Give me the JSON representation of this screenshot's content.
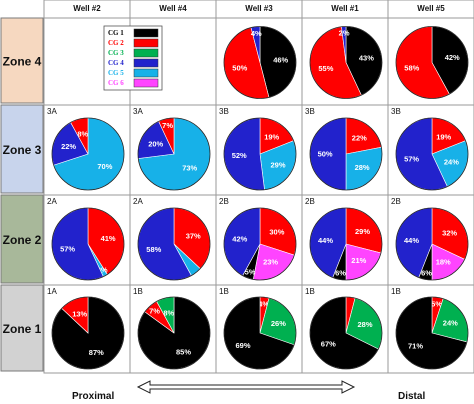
{
  "colors": {
    "CG1": "#000000",
    "CG2": "#ff0000",
    "CG3": "#00b050",
    "CG4": "#2222cc",
    "CG5": "#17b1e8",
    "CG6": "#ff44ff",
    "zone4_bg": "#f6d8c0",
    "zone3_bg": "#c8d4ec",
    "zone2_bg": "#a8b89a",
    "zone1_bg": "#d2d2d2"
  },
  "wells": [
    "Well #2",
    "Well #4",
    "Well #3",
    "Well #1",
    "Well #5"
  ],
  "zones": [
    "Zone 4",
    "Zone 3",
    "Zone 2",
    "Zone 1"
  ],
  "legend": {
    "entries": [
      {
        "key": "CG1",
        "label": "CG 1"
      },
      {
        "key": "CG2",
        "label": "CG 2"
      },
      {
        "key": "CG3",
        "label": "CG 3"
      },
      {
        "key": "CG4",
        "label": "CG 4"
      },
      {
        "key": "CG5",
        "label": "CG 5"
      },
      {
        "key": "CG6",
        "label": "CG 6"
      }
    ]
  },
  "axis": {
    "left": "Proximal",
    "right": "Distal"
  },
  "chart_data": {
    "type": "pie",
    "title": "",
    "grid_rows": [
      "Zone 4",
      "Zone 3",
      "Zone 2",
      "Zone 1"
    ],
    "grid_columns": [
      "Well #2",
      "Well #4",
      "Well #3",
      "Well #1",
      "Well #5"
    ],
    "pies": [
      {
        "zone": "Zone 4",
        "well": "Well #3",
        "slices": [
          {
            "group": "CG1",
            "value": 46,
            "label": "46%"
          },
          {
            "group": "CG2",
            "value": 50,
            "label": "50%"
          },
          {
            "group": "CG4",
            "value": 4,
            "label": "4%"
          }
        ]
      },
      {
        "zone": "Zone 4",
        "well": "Well #1",
        "slices": [
          {
            "group": "CG1",
            "value": 43,
            "label": "43%"
          },
          {
            "group": "CG2",
            "value": 55,
            "label": "55%"
          },
          {
            "group": "CG4",
            "value": 2,
            "label": "2%"
          }
        ]
      },
      {
        "zone": "Zone 4",
        "well": "Well #5",
        "slices": [
          {
            "group": "CG1",
            "value": 42,
            "label": "42%"
          },
          {
            "group": "CG2",
            "value": 58,
            "label": "58%"
          }
        ]
      },
      {
        "zone": "Zone 3",
        "well": "Well #2",
        "tag": "3A",
        "slices": [
          {
            "group": "CG5",
            "value": 70,
            "label": "70%"
          },
          {
            "group": "CG4",
            "value": 22,
            "label": "22%"
          },
          {
            "group": "CG2",
            "value": 8,
            "label": "8%"
          }
        ]
      },
      {
        "zone": "Zone 3",
        "well": "Well #4",
        "tag": "3A",
        "slices": [
          {
            "group": "CG5",
            "value": 73,
            "label": "73%"
          },
          {
            "group": "CG4",
            "value": 20,
            "label": "20%"
          },
          {
            "group": "CG2",
            "value": 7,
            "label": "7%"
          }
        ]
      },
      {
        "zone": "Zone 3",
        "well": "Well #3",
        "tag": "3B",
        "slices": [
          {
            "group": "CG2",
            "value": 19,
            "label": "19%"
          },
          {
            "group": "CG5",
            "value": 29,
            "label": "29%"
          },
          {
            "group": "CG4",
            "value": 52,
            "label": "52%"
          }
        ]
      },
      {
        "zone": "Zone 3",
        "well": "Well #1",
        "tag": "3B",
        "slices": [
          {
            "group": "CG2",
            "value": 22,
            "label": "22%"
          },
          {
            "group": "CG5",
            "value": 28,
            "label": "28%"
          },
          {
            "group": "CG4",
            "value": 50,
            "label": "50%"
          }
        ]
      },
      {
        "zone": "Zone 3",
        "well": "Well #5",
        "tag": "3B",
        "slices": [
          {
            "group": "CG2",
            "value": 19,
            "label": "19%"
          },
          {
            "group": "CG5",
            "value": 24,
            "label": "24%"
          },
          {
            "group": "CG4",
            "value": 57,
            "label": "57%"
          }
        ]
      },
      {
        "zone": "Zone 2",
        "well": "Well #2",
        "tag": "2A",
        "slices": [
          {
            "group": "CG2",
            "value": 41,
            "label": "41%"
          },
          {
            "group": "CG5",
            "value": 2,
            "label": "2%"
          },
          {
            "group": "CG4",
            "value": 57,
            "label": "57%"
          }
        ]
      },
      {
        "zone": "Zone 2",
        "well": "Well #4",
        "tag": "2A",
        "slices": [
          {
            "group": "CG2",
            "value": 37,
            "label": "37%"
          },
          {
            "group": "CG5",
            "value": 5,
            "label": ""
          },
          {
            "group": "CG4",
            "value": 58,
            "label": "58%"
          }
        ]
      },
      {
        "zone": "Zone 2",
        "well": "Well #3",
        "tag": "2B",
        "slices": [
          {
            "group": "CG2",
            "value": 30,
            "label": "30%"
          },
          {
            "group": "CG6",
            "value": 23,
            "label": "23%"
          },
          {
            "group": "CG1",
            "value": 5,
            "label": "5%"
          },
          {
            "group": "CG4",
            "value": 42,
            "label": "42%"
          }
        ]
      },
      {
        "zone": "Zone 2",
        "well": "Well #1",
        "tag": "2B",
        "slices": [
          {
            "group": "CG2",
            "value": 29,
            "label": "29%"
          },
          {
            "group": "CG6",
            "value": 21,
            "label": "21%"
          },
          {
            "group": "CG1",
            "value": 6,
            "label": "6%"
          },
          {
            "group": "CG4",
            "value": 44,
            "label": "44%"
          }
        ]
      },
      {
        "zone": "Zone 2",
        "well": "Well #5",
        "tag": "2B",
        "slices": [
          {
            "group": "CG2",
            "value": 32,
            "label": "32%"
          },
          {
            "group": "CG6",
            "value": 18,
            "label": "18%"
          },
          {
            "group": "CG1",
            "value": 6,
            "label": "6%"
          },
          {
            "group": "CG4",
            "value": 44,
            "label": "44%"
          }
        ]
      },
      {
        "zone": "Zone 1",
        "well": "Well #2",
        "tag": "1A",
        "slices": [
          {
            "group": "CG1",
            "value": 87,
            "label": "87%"
          },
          {
            "group": "CG2",
            "value": 13,
            "label": "13%"
          }
        ]
      },
      {
        "zone": "Zone 1",
        "well": "Well #4",
        "tag": "1B",
        "slices": [
          {
            "group": "CG1",
            "value": 85,
            "label": "85%"
          },
          {
            "group": "CG2",
            "value": 7,
            "label": "7%"
          },
          {
            "group": "CG3",
            "value": 8,
            "label": "8%"
          }
        ]
      },
      {
        "zone": "Zone 1",
        "well": "Well #3",
        "tag": "1B",
        "slices": [
          {
            "group": "CG2",
            "value": 4,
            "label": "4%"
          },
          {
            "group": "CG3",
            "value": 26,
            "label": "26%"
          },
          {
            "group": "CG1",
            "value": 69,
            "label": "69%"
          }
        ]
      },
      {
        "zone": "Zone 1",
        "well": "Well #1",
        "tag": "1B",
        "slices": [
          {
            "group": "CG2",
            "value": 4,
            "label": ""
          },
          {
            "group": "CG3",
            "value": 28,
            "label": "28%"
          },
          {
            "group": "CG1",
            "value": 67,
            "label": "67%"
          }
        ]
      },
      {
        "zone": "Zone 1",
        "well": "Well #5",
        "tag": "1B",
        "slices": [
          {
            "group": "CG2",
            "value": 5,
            "label": "5%"
          },
          {
            "group": "CG3",
            "value": 24,
            "label": "24%"
          },
          {
            "group": "CG1",
            "value": 71,
            "label": "71%"
          }
        ]
      }
    ]
  }
}
